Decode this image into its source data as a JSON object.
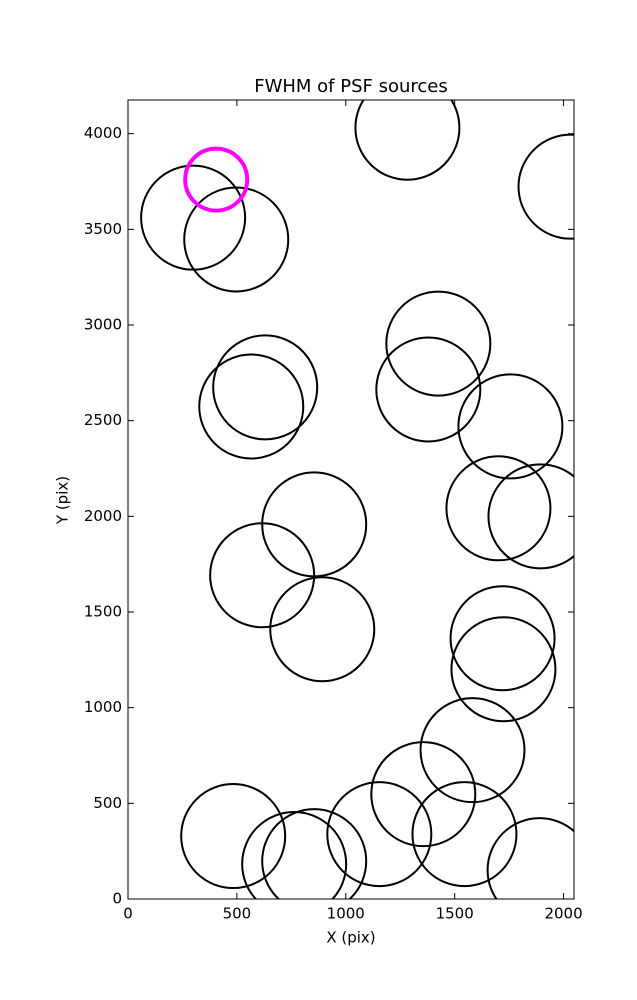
{
  "chart_data": {
    "type": "scatter",
    "title": "FWHM of PSF sources",
    "x_label": "X (pix)",
    "y_label": "Y (pix)",
    "xlim": [
      0,
      2048
    ],
    "ylim": [
      0,
      4176
    ],
    "xticks": [
      0,
      500,
      1000,
      1500,
      2000
    ],
    "yticks": [
      0,
      500,
      1000,
      1500,
      2000,
      2500,
      3000,
      3500,
      4000
    ],
    "series": [
      {
        "color": "#000000",
        "x": [
          299,
          497,
          1283,
          2032,
          630,
          566,
          1425,
          1379,
          1756,
          855,
          1701,
          1894,
          616,
          892,
          1720,
          1724,
          1582,
          1356,
          483,
          763,
          855,
          1154,
          1545,
          1890
        ],
        "values": [
          3561,
          3447,
          4031,
          3723,
          2674,
          2574,
          2903,
          2663,
          2470,
          1958,
          2042,
          2000,
          1692,
          1410,
          1363,
          1201,
          778,
          548,
          329,
          183,
          198,
          339,
          339,
          151
        ]
      },
      {
        "color": "#ff00ff",
        "x": [
          405
        ],
        "values": [
          3760
        ]
      }
    ]
  }
}
